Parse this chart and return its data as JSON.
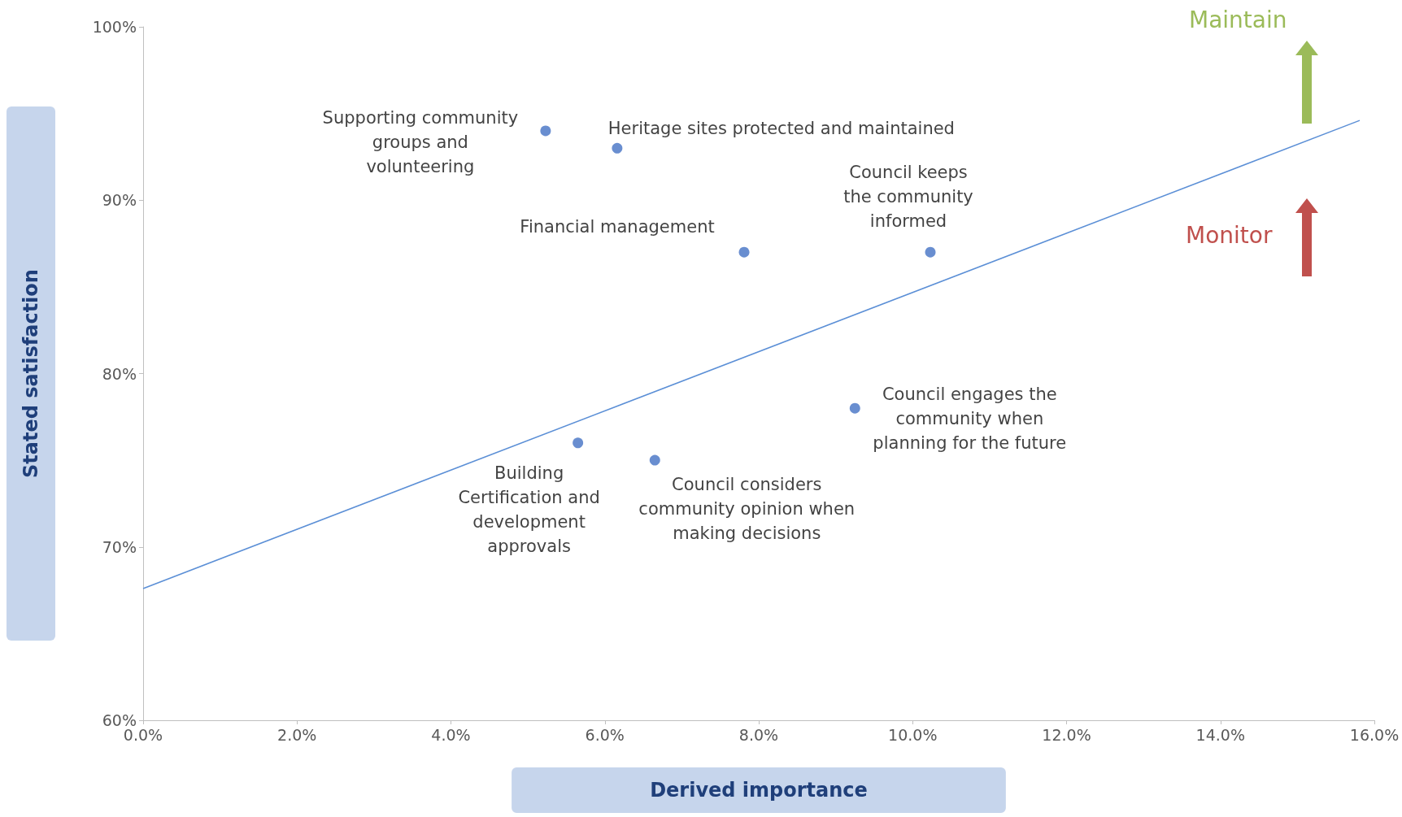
{
  "chart_data": {
    "type": "scatter",
    "xlabel": "Derived importance",
    "ylabel": "Stated satisfaction",
    "xlim": [
      0,
      16
    ],
    "xticks": [
      {
        "value": 0,
        "label": "0.0%"
      },
      {
        "value": 2,
        "label": "2.0%"
      },
      {
        "value": 4,
        "label": "4.0%"
      },
      {
        "value": 6,
        "label": "6.0%"
      },
      {
        "value": 8,
        "label": "8.0%"
      },
      {
        "value": 10,
        "label": "10.0%"
      },
      {
        "value": 12,
        "label": "12.0%"
      },
      {
        "value": 14,
        "label": "14.0%"
      },
      {
        "value": 16,
        "label": "16.0%"
      }
    ],
    "ylim": [
      60,
      100
    ],
    "yticks": [
      {
        "value": 60,
        "label": "60%"
      },
      {
        "value": 70,
        "label": "70%"
      },
      {
        "value": 80,
        "label": "80%"
      },
      {
        "value": 90,
        "label": "90%"
      },
      {
        "value": 100,
        "label": "100%"
      }
    ],
    "grid": false,
    "series": [
      {
        "marker": "circle",
        "color": "#4472c4",
        "x": [
          5.23,
          6.16,
          7.81,
          10.23,
          9.25,
          5.65,
          6.65
        ],
        "values": [
          94,
          93,
          87,
          87,
          78,
          76,
          75
        ]
      },
      {
        "type": "line",
        "color": "#5b8fd6",
        "x": [
          0,
          15.81
        ],
        "values": [
          67.6,
          94.6
        ]
      }
    ],
    "annotations": [
      {
        "text": "Supporting community\ngroups and\nvolunteering",
        "x": 5.23,
        "y": 94
      },
      {
        "text": "Heritage sites protected and maintained",
        "x": 6.16,
        "y": 93
      },
      {
        "text": "Financial management",
        "x": 7.81,
        "y": 87
      },
      {
        "text": "Council keeps\nthe community\ninformed",
        "x": 10.23,
        "y": 87
      },
      {
        "text": "Council engages the\ncommunity when\nplanning for the future",
        "x": 9.25,
        "y": 78
      },
      {
        "text": "Building\nCertification and\ndevelopment\napprovals",
        "x": 5.65,
        "y": 76
      },
      {
        "text": "Council considers\ncommunity opinion when\nmaking decisions",
        "x": 6.65,
        "y": 75
      },
      "Maintain",
      "Monitor"
    ]
  }
}
